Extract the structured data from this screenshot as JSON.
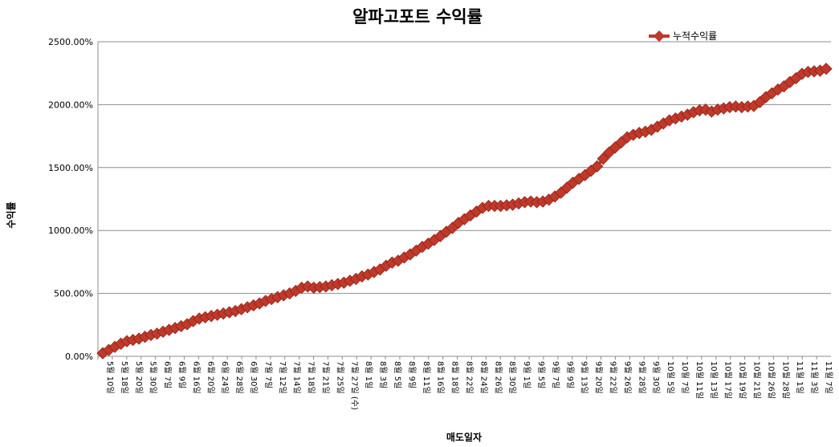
{
  "chart_data": {
    "type": "line",
    "title": "알파고포트 수익률",
    "xlabel": "매도일자",
    "ylabel": "수익률",
    "ylim": [
      0,
      2500
    ],
    "yticks": [
      "0.00%",
      "500.00%",
      "1000.00%",
      "1500.00%",
      "2000.00%",
      "2500.00%"
    ],
    "ytick_values": [
      0,
      500,
      1000,
      1500,
      2000,
      2500
    ],
    "grid": true,
    "legend_position": "top-right",
    "series": [
      {
        "name": "누적수익률",
        "color": "#c0392b",
        "values": [
          25,
          50,
          75,
          100,
          120,
          130,
          140,
          155,
          170,
          180,
          195,
          210,
          225,
          240,
          255,
          280,
          300,
          310,
          320,
          330,
          340,
          350,
          360,
          375,
          390,
          405,
          420,
          440,
          455,
          470,
          485,
          500,
          520,
          545,
          555,
          545,
          550,
          555,
          565,
          575,
          585,
          600,
          615,
          635,
          650,
          670,
          690,
          720,
          745,
          760,
          785,
          810,
          840,
          870,
          895,
          925,
          955,
          990,
          1020,
          1060,
          1090,
          1120,
          1150,
          1180,
          1195,
          1195,
          1195,
          1200,
          1205,
          1215,
          1225,
          1230,
          1225,
          1230,
          1245,
          1270,
          1300,
          1340,
          1380,
          1410,
          1440,
          1475,
          1510,
          1570,
          1620,
          1660,
          1700,
          1740,
          1760,
          1775,
          1785,
          1800,
          1825,
          1850,
          1875,
          1890,
          1905,
          1920,
          1940,
          1955,
          1960,
          1945,
          1960,
          1970,
          1980,
          1985,
          1980,
          1985,
          1990,
          2020,
          2060,
          2090,
          2120,
          2145,
          2180,
          2210,
          2245,
          2260,
          2265,
          2270,
          2285
        ]
      }
    ],
    "xticks": [
      "5월 10일",
      "5월 18일",
      "5월 20일",
      "5월 30일",
      "6월 7일",
      "6월 9일",
      "6월 16일",
      "6월 20일",
      "6월 24일",
      "6월 28일",
      "6월 30일",
      "7월 7일",
      "7월 12일",
      "7월 14일",
      "7월 18일",
      "7월 21일",
      "7월 25일",
      "7월 27일 (수)",
      "8월 1일",
      "8월 3일",
      "8월 5일",
      "8월 9일",
      "8월 11일",
      "8월 16일",
      "8월 18일",
      "8월 22일",
      "8월 24일",
      "8월 26일",
      "8월 30일",
      "9월 1일",
      "9월 5일",
      "9월 7일",
      "9월 9일",
      "9월 13일",
      "9월 20일",
      "9월 22일",
      "9월 26일",
      "9월 28일",
      "9월 30일",
      "10월 5일",
      "10월 7일",
      "10월 11일",
      "10월 13일",
      "10월 17일",
      "10월 19일",
      "10월 21일",
      "10월 26일",
      "10월 28일",
      "11월 1일",
      "11월 3일",
      "11월 7일"
    ]
  }
}
